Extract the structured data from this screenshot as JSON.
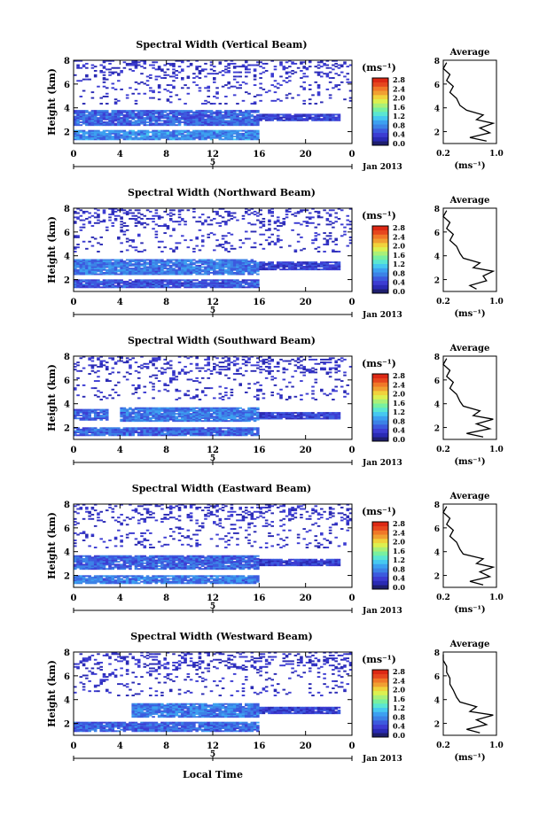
{
  "x_axis_title": "Local Time",
  "date_label": "Jan 2013",
  "day_label": "5",
  "colorbar_unit": "(ms⁻¹)",
  "colorbar_ticks": [
    "0.0",
    "0.4",
    "0.8",
    "1.2",
    "1.6",
    "2.0",
    "2.4",
    "2.8"
  ],
  "colormap": [
    "#1e1e6e",
    "#2a2ab4",
    "#3c3cd2",
    "#3c5ade",
    "#3c82e6",
    "#3ca0f0",
    "#46c8f0",
    "#5ae6d2",
    "#78f0a0",
    "#aaf078",
    "#dcf050",
    "#f0d23c",
    "#f0a032",
    "#f07828",
    "#e6461e",
    "#dc2814"
  ],
  "average_title": "Average",
  "average_xlabel": "(ms⁻¹)",
  "chart_data": [
    {
      "type": "heatmap",
      "title": "Spectral Width (Vertical Beam)",
      "ylabel": "Height (km)",
      "x_ticks": [
        "0",
        "4",
        "8",
        "12",
        "16",
        "20",
        "0"
      ],
      "y_ticks": [
        "2",
        "4",
        "6",
        "8"
      ],
      "xlim": [
        0,
        24
      ],
      "ylim": [
        1,
        8
      ],
      "color_range": [
        0.0,
        3.0
      ],
      "bands": [
        {
          "x": [
            0,
            16
          ],
          "y": [
            2.5,
            3.8
          ],
          "value": 0.7
        },
        {
          "x": [
            16,
            23
          ],
          "y": [
            2.9,
            3.5
          ],
          "value": 0.5
        },
        {
          "x": [
            0,
            16
          ],
          "y": [
            1.3,
            2.1
          ],
          "value": 0.9
        }
      ],
      "average_profile": {
        "xlim": [
          0.2,
          1.0
        ],
        "x_ticks": [
          "0.2",
          "1.0"
        ],
        "y_ticks": [
          "2",
          "4",
          "6",
          "8"
        ],
        "points": [
          [
            0.85,
            1.2
          ],
          [
            0.6,
            1.5
          ],
          [
            0.9,
            1.9
          ],
          [
            0.75,
            2.3
          ],
          [
            0.95,
            2.7
          ],
          [
            0.7,
            3.0
          ],
          [
            0.8,
            3.4
          ],
          [
            0.55,
            3.8
          ],
          [
            0.45,
            4.2
          ],
          [
            0.4,
            4.8
          ],
          [
            0.3,
            5.3
          ],
          [
            0.35,
            5.8
          ],
          [
            0.25,
            6.3
          ],
          [
            0.3,
            6.8
          ],
          [
            0.2,
            7.3
          ],
          [
            0.25,
            7.8
          ]
        ]
      }
    },
    {
      "type": "heatmap",
      "title": "Spectral Width (Northward Beam)",
      "ylabel": "Height (km)",
      "x_ticks": [
        "0",
        "4",
        "8",
        "12",
        "16",
        "20",
        "0"
      ],
      "y_ticks": [
        "2",
        "4",
        "6",
        "8"
      ],
      "xlim": [
        0,
        24
      ],
      "ylim": [
        1,
        8
      ],
      "color_range": [
        0.0,
        3.0
      ],
      "bands": [
        {
          "x": [
            0,
            16
          ],
          "y": [
            2.4,
            3.7
          ],
          "value": 0.8
        },
        {
          "x": [
            16,
            23
          ],
          "y": [
            2.8,
            3.5
          ],
          "value": 0.5
        },
        {
          "x": [
            0,
            16
          ],
          "y": [
            1.3,
            2.0
          ],
          "value": 0.6
        }
      ],
      "average_profile": {
        "xlim": [
          0.2,
          1.0
        ],
        "x_ticks": [
          "0.2",
          "1.0"
        ],
        "y_ticks": [
          "2",
          "4",
          "6",
          "8"
        ],
        "points": [
          [
            0.7,
            1.2
          ],
          [
            0.6,
            1.5
          ],
          [
            0.85,
            1.9
          ],
          [
            0.8,
            2.3
          ],
          [
            0.95,
            2.7
          ],
          [
            0.65,
            3.0
          ],
          [
            0.75,
            3.4
          ],
          [
            0.5,
            3.8
          ],
          [
            0.45,
            4.2
          ],
          [
            0.4,
            4.8
          ],
          [
            0.3,
            5.3
          ],
          [
            0.35,
            5.8
          ],
          [
            0.25,
            6.3
          ],
          [
            0.3,
            6.8
          ],
          [
            0.2,
            7.3
          ],
          [
            0.25,
            7.8
          ]
        ]
      }
    },
    {
      "type": "heatmap",
      "title": "Spectral Width (Southward Beam)",
      "ylabel": "Height (km)",
      "x_ticks": [
        "0",
        "4",
        "8",
        "12",
        "16",
        "20",
        "0"
      ],
      "y_ticks": [
        "2",
        "4",
        "6",
        "8"
      ],
      "xlim": [
        0,
        24
      ],
      "ylim": [
        1,
        8
      ],
      "color_range": [
        0.0,
        3.0
      ],
      "bands": [
        {
          "x": [
            0,
            3
          ],
          "y": [
            2.6,
            3.5
          ],
          "value": 0.7
        },
        {
          "x": [
            4,
            16
          ],
          "y": [
            2.5,
            3.7
          ],
          "value": 0.8
        },
        {
          "x": [
            16,
            23
          ],
          "y": [
            2.7,
            3.3
          ],
          "value": 0.5
        },
        {
          "x": [
            0,
            16
          ],
          "y": [
            1.3,
            2.0
          ],
          "value": 0.7
        }
      ],
      "average_profile": {
        "xlim": [
          0.2,
          1.0
        ],
        "x_ticks": [
          "0.2",
          "1.0"
        ],
        "y_ticks": [
          "2",
          "4",
          "6",
          "8"
        ],
        "points": [
          [
            0.8,
            1.2
          ],
          [
            0.55,
            1.5
          ],
          [
            0.9,
            1.9
          ],
          [
            0.7,
            2.3
          ],
          [
            0.95,
            2.7
          ],
          [
            0.65,
            3.0
          ],
          [
            0.75,
            3.4
          ],
          [
            0.5,
            3.8
          ],
          [
            0.45,
            4.2
          ],
          [
            0.4,
            4.8
          ],
          [
            0.3,
            5.3
          ],
          [
            0.35,
            5.8
          ],
          [
            0.25,
            6.3
          ],
          [
            0.3,
            6.8
          ],
          [
            0.2,
            7.3
          ],
          [
            0.25,
            7.8
          ]
        ]
      }
    },
    {
      "type": "heatmap",
      "title": "Spectral Width (Eastward Beam)",
      "ylabel": "Height (km)",
      "x_ticks": [
        "0",
        "4",
        "8",
        "12",
        "16",
        "20",
        "0"
      ],
      "y_ticks": [
        "2",
        "4",
        "6",
        "8"
      ],
      "xlim": [
        0,
        24
      ],
      "ylim": [
        1,
        8
      ],
      "color_range": [
        0.0,
        3.0
      ],
      "bands": [
        {
          "x": [
            0,
            16
          ],
          "y": [
            2.5,
            3.7
          ],
          "value": 0.7
        },
        {
          "x": [
            16,
            23
          ],
          "y": [
            2.8,
            3.4
          ],
          "value": 0.5
        },
        {
          "x": [
            0,
            16
          ],
          "y": [
            1.3,
            2.0
          ],
          "value": 0.8
        }
      ],
      "average_profile": {
        "xlim": [
          0.2,
          1.0
        ],
        "x_ticks": [
          "0.2",
          "1.0"
        ],
        "y_ticks": [
          "2",
          "4",
          "6",
          "8"
        ],
        "points": [
          [
            0.8,
            1.2
          ],
          [
            0.6,
            1.5
          ],
          [
            0.9,
            1.9
          ],
          [
            0.75,
            2.3
          ],
          [
            0.95,
            2.7
          ],
          [
            0.7,
            3.0
          ],
          [
            0.8,
            3.4
          ],
          [
            0.5,
            3.8
          ],
          [
            0.45,
            4.2
          ],
          [
            0.4,
            4.8
          ],
          [
            0.3,
            5.3
          ],
          [
            0.35,
            5.8
          ],
          [
            0.25,
            6.3
          ],
          [
            0.3,
            6.8
          ],
          [
            0.2,
            7.3
          ],
          [
            0.25,
            7.8
          ]
        ]
      }
    },
    {
      "type": "heatmap",
      "title": "Spectral Width (Westward Beam)",
      "ylabel": "Height (km)",
      "x_ticks": [
        "0",
        "4",
        "8",
        "12",
        "16",
        "20",
        "0"
      ],
      "y_ticks": [
        "2",
        "4",
        "6",
        "8"
      ],
      "xlim": [
        0,
        24
      ],
      "ylim": [
        1,
        8
      ],
      "color_range": [
        0.0,
        3.0
      ],
      "bands": [
        {
          "x": [
            5,
            16
          ],
          "y": [
            2.5,
            3.6
          ],
          "value": 0.8
        },
        {
          "x": [
            16,
            23
          ],
          "y": [
            2.8,
            3.3
          ],
          "value": 0.5
        },
        {
          "x": [
            0,
            16
          ],
          "y": [
            1.3,
            2.1
          ],
          "value": 0.7
        }
      ],
      "average_profile": {
        "xlim": [
          0.2,
          1.0
        ],
        "x_ticks": [
          "0.2",
          "1.0"
        ],
        "y_ticks": [
          "2",
          "4",
          "6",
          "8"
        ],
        "points": [
          [
            0.75,
            1.2
          ],
          [
            0.55,
            1.5
          ],
          [
            0.85,
            1.9
          ],
          [
            0.7,
            2.3
          ],
          [
            0.95,
            2.7
          ],
          [
            0.6,
            3.0
          ],
          [
            0.7,
            3.4
          ],
          [
            0.45,
            3.8
          ],
          [
            0.4,
            4.2
          ],
          [
            0.35,
            4.8
          ],
          [
            0.3,
            5.3
          ],
          [
            0.3,
            5.8
          ],
          [
            0.25,
            6.3
          ],
          [
            0.25,
            6.8
          ],
          [
            0.2,
            7.3
          ],
          [
            0.2,
            7.8
          ]
        ]
      }
    }
  ]
}
